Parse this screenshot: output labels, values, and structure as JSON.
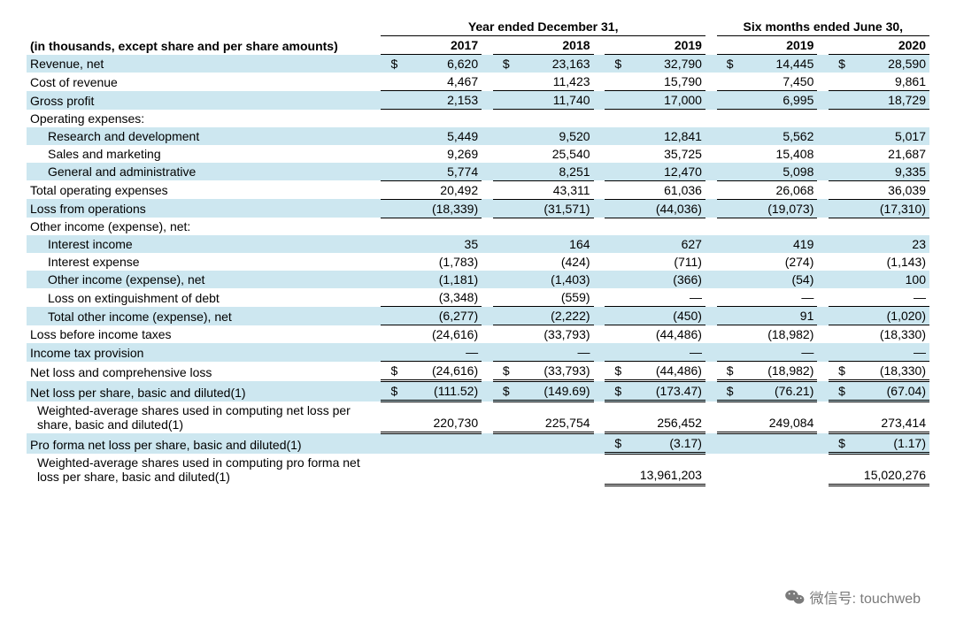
{
  "header": {
    "note": "(in thousands, except share and per share amounts)",
    "period_year": "Year ended December 31,",
    "period_six": "Six months ended June 30,",
    "years": [
      "2017",
      "2018",
      "2019",
      "2019",
      "2020"
    ]
  },
  "rows": [
    {
      "label": "Revenue, net",
      "shade": true,
      "dollar": true,
      "vals": [
        "6,620",
        "23,163",
        "32,790",
        "14,445",
        "28,590"
      ]
    },
    {
      "label": "Cost of revenue",
      "ul_bot": true,
      "vals": [
        "4,467",
        "11,423",
        "15,790",
        "7,450",
        "9,861"
      ]
    },
    {
      "label": "Gross profit",
      "shade": true,
      "ul_bot": true,
      "vals": [
        "2,153",
        "11,740",
        "17,000",
        "6,995",
        "18,729"
      ]
    },
    {
      "label": "Operating expenses:",
      "header_only": true
    },
    {
      "label": "Research and development",
      "indent": 1,
      "shade": true,
      "vals": [
        "5,449",
        "9,520",
        "12,841",
        "5,562",
        "5,017"
      ]
    },
    {
      "label": "Sales and marketing",
      "indent": 1,
      "vals": [
        "9,269",
        "25,540",
        "35,725",
        "15,408",
        "21,687"
      ]
    },
    {
      "label": "General and administrative",
      "indent": 1,
      "shade": true,
      "ul_bot": true,
      "vals": [
        "5,774",
        "8,251",
        "12,470",
        "5,098",
        "9,335"
      ]
    },
    {
      "label": "Total operating expenses",
      "ul_bot": true,
      "vals": [
        "20,492",
        "43,311",
        "61,036",
        "26,068",
        "36,039"
      ]
    },
    {
      "label": "Loss from operations",
      "shade": true,
      "ul_bot": true,
      "vals": [
        "(18,339)",
        "(31,571)",
        "(44,036)",
        "(19,073)",
        "(17,310)"
      ]
    },
    {
      "label": "Other income (expense), net:",
      "header_only": true
    },
    {
      "label": "Interest income",
      "indent": 1,
      "shade": true,
      "vals": [
        "35",
        "164",
        "627",
        "419",
        "23"
      ]
    },
    {
      "label": "Interest expense",
      "indent": 1,
      "vals": [
        "(1,783)",
        "(424)",
        "(711)",
        "(274)",
        "(1,143)"
      ]
    },
    {
      "label": "Other income (expense), net",
      "indent": 1,
      "shade": true,
      "vals": [
        "(1,181)",
        "(1,403)",
        "(366)",
        "(54)",
        "100"
      ]
    },
    {
      "label": "Loss on extinguishment of debt",
      "indent": 1,
      "ul_bot": true,
      "vals": [
        "(3,348)",
        "(559)",
        "—",
        "—",
        "—"
      ]
    },
    {
      "label": "Total other income (expense), net",
      "indent": 1,
      "shade": true,
      "ul_bot": true,
      "vals": [
        "(6,277)",
        "(2,222)",
        "(450)",
        "91",
        "(1,020)"
      ]
    },
    {
      "label": "Loss before income taxes",
      "vals": [
        "(24,616)",
        "(33,793)",
        "(44,486)",
        "(18,982)",
        "(18,330)"
      ]
    },
    {
      "label": "Income tax provision",
      "shade": true,
      "ul_bot": true,
      "vals": [
        "—",
        "—",
        "—",
        "—",
        "—"
      ]
    },
    {
      "label": "Net loss and comprehensive loss",
      "dollar": true,
      "dbl_bot": true,
      "vals": [
        "(24,616)",
        "(33,793)",
        "(44,486)",
        "(18,982)",
        "(18,330)"
      ]
    },
    {
      "label": "Net loss per share, basic and diluted(1)",
      "shade": true,
      "dollar": true,
      "dbl_bot": true,
      "vals": [
        "(111.52)",
        "(149.69)",
        "(173.47)",
        "(76.21)",
        "(67.04)"
      ]
    },
    {
      "label": "Weighted-average shares used in computing net loss per share, basic and diluted(1)",
      "indent": 2,
      "dbl_bot": true,
      "vals": [
        "220,730",
        "225,754",
        "256,452",
        "249,084",
        "273,414"
      ]
    },
    {
      "label": "Pro forma net loss per share, basic and diluted(1)",
      "shade": true,
      "dollar_partial": [
        false,
        false,
        true,
        false,
        true
      ],
      "dbl_bot": true,
      "vals": [
        "",
        "",
        "(3.17)",
        "",
        "(1.17)"
      ]
    },
    {
      "label": "Weighted-average shares used in computing pro forma net loss per share, basic and diluted(1)",
      "indent": 2,
      "dbl_bot": true,
      "vals": [
        "",
        "",
        "13,961,203",
        "",
        "15,020,276"
      ]
    }
  ],
  "watermark": {
    "label": "微信号: touchweb"
  },
  "colors": {
    "shade": "#cde7f0"
  }
}
